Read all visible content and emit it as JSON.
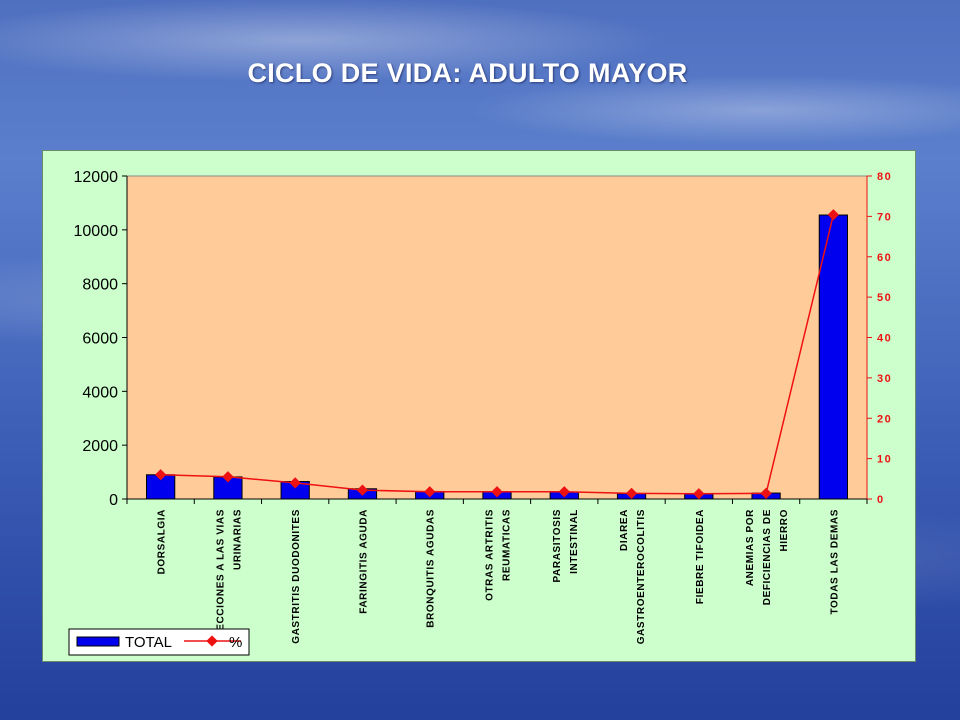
{
  "page": {
    "title": "CICLO DE VIDA: ADULTO MAYOR"
  },
  "colors": {
    "bar": "#0000ee",
    "line": "#ee1111",
    "plot_bg": "#ffcc99",
    "frame_bg": "#ccffcc"
  },
  "chart_data": {
    "type": "bar",
    "title": "",
    "categories": [
      [
        "DORSALGIA"
      ],
      [
        "INFECCIONES A LAS VIAS",
        "URINARIAS"
      ],
      [
        "GASTRITIS DUODONITES"
      ],
      [
        "FARINGITIS AGUDA"
      ],
      [
        "BRONQUITIS AGUDAS"
      ],
      [
        "OTRAS ARTRITIS",
        "REUMATICAS"
      ],
      [
        "PARASITOSIS",
        "INTESTINAL"
      ],
      [
        "DIAREA",
        "GASTROENTEROCOLITIS"
      ],
      [
        "FIEBRE TIFOIDEA"
      ],
      [
        "ANEMIAS POR",
        "DEFICIENCIAS DE",
        "HIERRO"
      ],
      [
        "TODAS LAS DEMAS"
      ]
    ],
    "series": [
      {
        "name": "TOTAL",
        "type": "bar",
        "axis": "left",
        "values": [
          900,
          820,
          650,
          380,
          280,
          270,
          260,
          200,
          190,
          220,
          10550
        ]
      },
      {
        "name": "%",
        "type": "line",
        "axis": "right",
        "values": [
          6,
          5.5,
          4,
          2.2,
          1.8,
          1.8,
          1.8,
          1.4,
          1.3,
          1.4,
          70.4
        ]
      }
    ],
    "y_left": {
      "ylim": [
        0,
        12000
      ],
      "ticks": [
        "0",
        "2000",
        "4000",
        "6000",
        "8000",
        "10000",
        "12000"
      ]
    },
    "y_right": {
      "ylim": [
        0,
        80
      ],
      "ticks": [
        "0",
        "10",
        "20",
        "30",
        "40",
        "50",
        "60",
        "70",
        "80"
      ]
    },
    "legend": "bottom-left",
    "grid": false
  }
}
